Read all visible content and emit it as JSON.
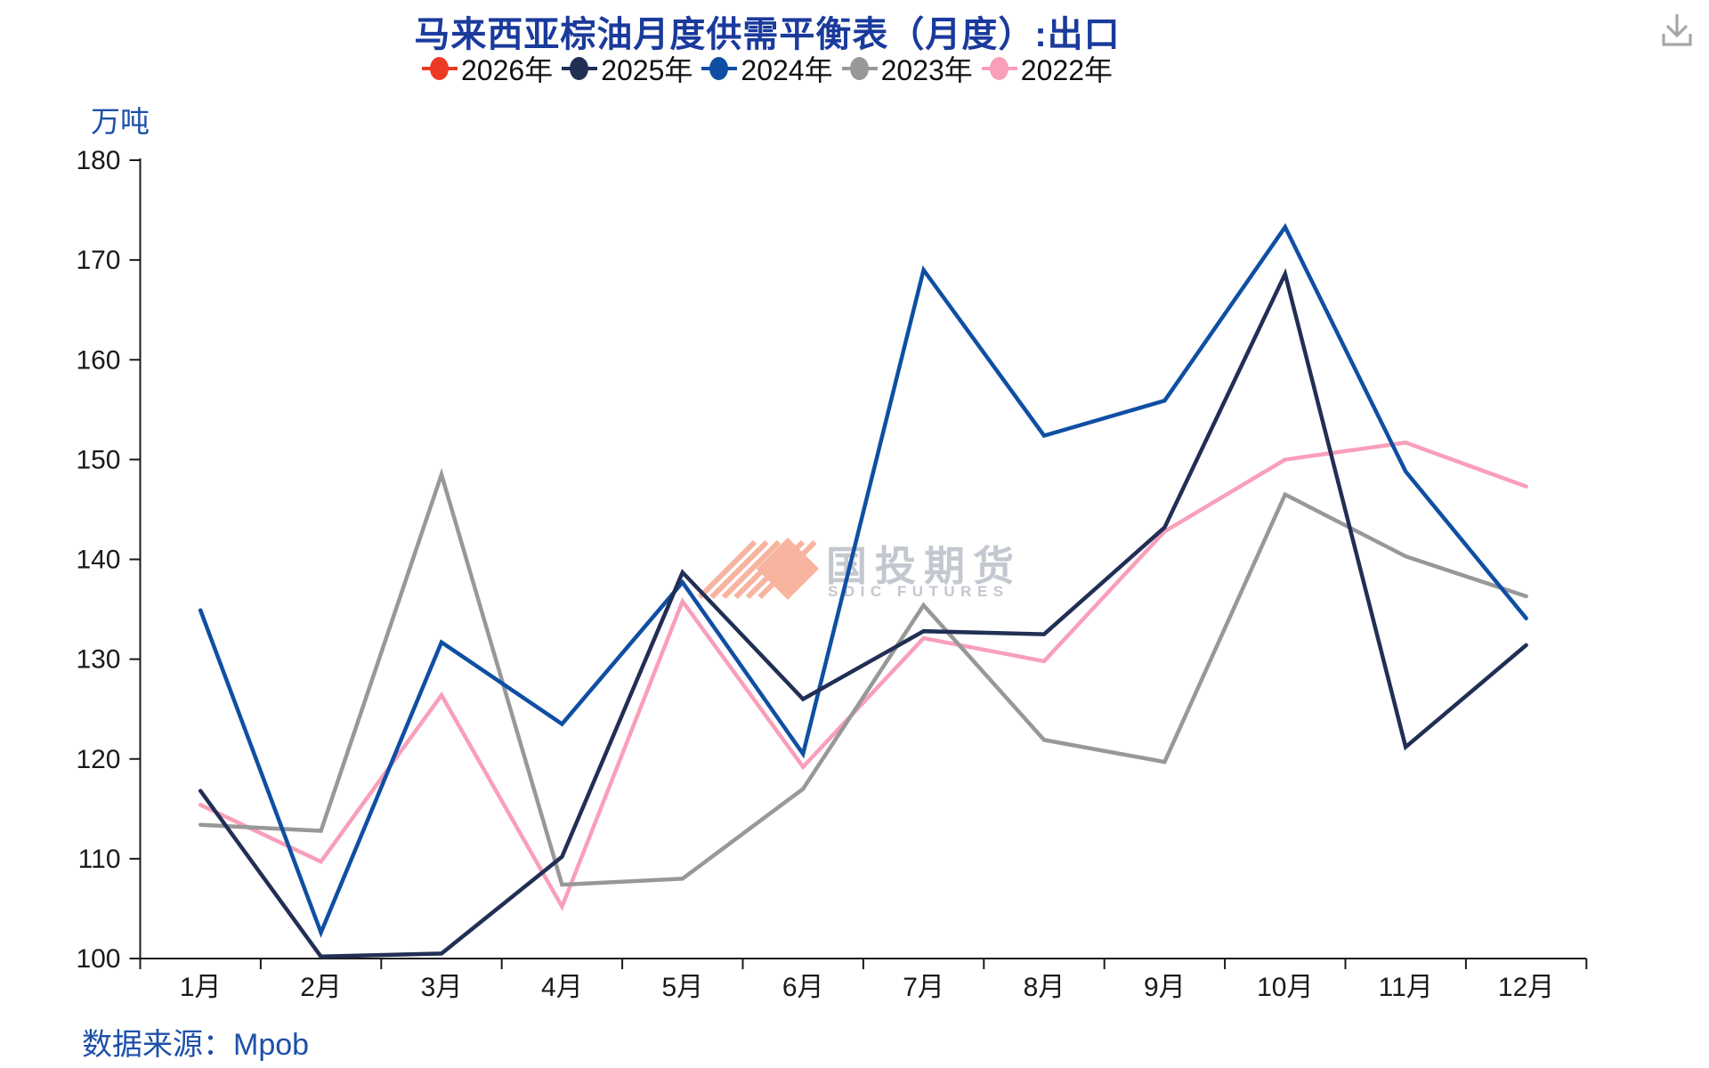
{
  "page": {
    "source": "数据来源：Mpob"
  },
  "watermark": {
    "cn": "国投期货",
    "en": "SDIC FUTURES",
    "logo_color": "#f8b49e",
    "text_color": "#c3c7d0"
  },
  "icons": {
    "download": "download-icon"
  },
  "legend": {
    "items": [
      {
        "label": "2026年",
        "color": "#ee3a24"
      },
      {
        "label": "2025年",
        "color": "#212f55"
      },
      {
        "label": "2024年",
        "color": "#0f4fa3"
      },
      {
        "label": "2023年",
        "color": "#989898"
      },
      {
        "label": "2022年",
        "color": "#f99fba"
      }
    ]
  },
  "chart_data": {
    "type": "line",
    "title": "马来西亚棕油月度供需平衡表（月度）:出口",
    "ylabel": "万吨",
    "xlabel": "",
    "ylim": [
      100,
      180
    ],
    "yticks": [
      100,
      110,
      120,
      130,
      140,
      150,
      160,
      170,
      180
    ],
    "grid": false,
    "legend_position": "top",
    "categories": [
      "1月",
      "2月",
      "3月",
      "4月",
      "5月",
      "6月",
      "7月",
      "8月",
      "9月",
      "10月",
      "11月",
      "12月"
    ],
    "series": [
      {
        "name": "2026年",
        "color": "#ee3a24",
        "values": []
      },
      {
        "name": "2025年",
        "color": "#212f55",
        "values": [
          116.8,
          100.2,
          100.5,
          110.2,
          138.7,
          126.0,
          132.8,
          132.5,
          143.2,
          168.6,
          121.2,
          131.4
        ]
      },
      {
        "name": "2024年",
        "color": "#0f4fa3",
        "values": [
          134.9,
          102.6,
          131.7,
          123.5,
          137.7,
          120.5,
          169.0,
          152.4,
          155.9,
          173.3,
          148.8,
          134.1
        ]
      },
      {
        "name": "2023年",
        "color": "#989898",
        "values": [
          113.4,
          112.8,
          148.5,
          107.4,
          108.0,
          117.0,
          135.4,
          121.9,
          119.7,
          146.5,
          140.3,
          136.3
        ]
      },
      {
        "name": "2022年",
        "color": "#f99fba",
        "values": [
          115.4,
          109.7,
          126.4,
          105.2,
          135.8,
          119.2,
          132.1,
          129.8,
          142.8,
          150.0,
          151.7,
          147.3
        ]
      }
    ]
  }
}
